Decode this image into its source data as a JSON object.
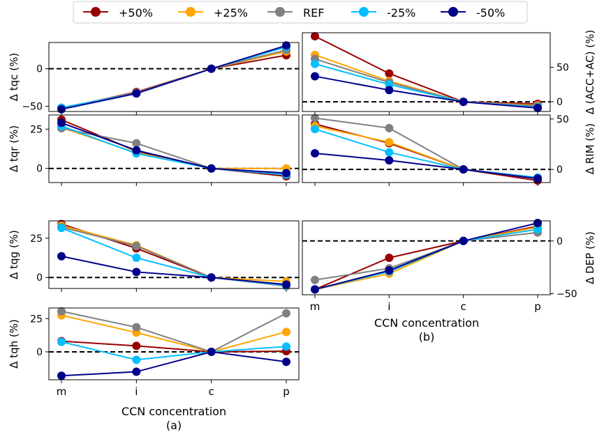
{
  "figure": {
    "legend": {
      "location": "top-center",
      "entries": [
        {
          "name": "+50%",
          "color": "#990000"
        },
        {
          "name": "+25%",
          "color": "#ffa500"
        },
        {
          "name": "REF",
          "color": "#808080"
        },
        {
          "name": "-25%",
          "color": "#00bfff"
        },
        {
          "name": "-50%",
          "color": "#00008b"
        }
      ]
    },
    "panel_labels": {
      "a": "(a)",
      "b": "(b)"
    },
    "x_label": "CCN concentration",
    "zero_line": "dashed black at y=0"
  },
  "chart_data": [
    {
      "id": "tqc",
      "type": "line",
      "panel": "a",
      "ylabel": "Δ tqc (%)",
      "yaxis_side": "left",
      "categories": [
        "m",
        "i",
        "c",
        "p"
      ],
      "ylim": [
        -57,
        35
      ],
      "yticks": [
        -50,
        0
      ],
      "ytick_labels": [
        "−50",
        "0"
      ],
      "series": [
        {
          "name": "+50%",
          "values": [
            -53,
            -31,
            0,
            18
          ]
        },
        {
          "name": "+25%",
          "values": [
            -53,
            -32,
            0,
            23
          ]
        },
        {
          "name": "REF",
          "values": [
            -52,
            -32,
            0,
            25
          ]
        },
        {
          "name": "-25%",
          "values": [
            -52,
            -33,
            0,
            29
          ]
        },
        {
          "name": "-50%",
          "values": [
            -54,
            -33,
            0,
            31
          ]
        }
      ]
    },
    {
      "id": "acc",
      "type": "line",
      "panel": "b",
      "ylabel": "Δ (ACC+AC) (%)",
      "yaxis_side": "right",
      "categories": [
        "m",
        "i",
        "c",
        "p"
      ],
      "ylim": [
        -14,
        100
      ],
      "yticks": [
        0,
        50
      ],
      "ytick_labels": [
        "0",
        "50"
      ],
      "series": [
        {
          "name": "+50%",
          "values": [
            95,
            41,
            0,
            -3
          ]
        },
        {
          "name": "+25%",
          "values": [
            68,
            30,
            0,
            -5
          ]
        },
        {
          "name": "REF",
          "values": [
            62,
            28,
            0,
            -6
          ]
        },
        {
          "name": "-25%",
          "values": [
            55,
            25,
            0,
            -8
          ]
        },
        {
          "name": "-50%",
          "values": [
            37,
            17,
            0,
            -9
          ]
        }
      ]
    },
    {
      "id": "tqr",
      "type": "line",
      "panel": "a",
      "ylabel": "Δ tqr (%)",
      "yaxis_side": "left",
      "categories": [
        "m",
        "i",
        "c",
        "p"
      ],
      "ylim": [
        -9,
        34
      ],
      "yticks": [
        0,
        25
      ],
      "ytick_labels": [
        "0",
        "25"
      ],
      "series": [
        {
          "name": "+50%",
          "values": [
            31,
            11,
            0,
            -5
          ]
        },
        {
          "name": "+25%",
          "values": [
            26,
            10,
            0,
            0
          ]
        },
        {
          "name": "REF",
          "values": [
            25.5,
            16,
            0,
            -3
          ]
        },
        {
          "name": "-25%",
          "values": [
            27,
            9.5,
            0,
            -4
          ]
        },
        {
          "name": "-50%",
          "values": [
            29,
            11.5,
            0,
            -3
          ]
        }
      ]
    },
    {
      "id": "rim",
      "type": "line",
      "panel": "b",
      "ylabel": "Δ RIM (%)",
      "yaxis_side": "right",
      "categories": [
        "m",
        "i",
        "c",
        "p"
      ],
      "ylim": [
        -13,
        54
      ],
      "yticks": [
        0,
        50
      ],
      "ytick_labels": [
        "0",
        "50"
      ],
      "series": [
        {
          "name": "+50%",
          "values": [
            45,
            26,
            0,
            -11
          ]
        },
        {
          "name": "+25%",
          "values": [
            43,
            27,
            0,
            -8
          ]
        },
        {
          "name": "REF",
          "values": [
            51,
            41,
            0,
            -9
          ]
        },
        {
          "name": "-25%",
          "values": [
            40,
            17,
            0,
            -8
          ]
        },
        {
          "name": "-50%",
          "values": [
            16,
            9,
            0,
            -9
          ]
        }
      ]
    },
    {
      "id": "tqg",
      "type": "line",
      "panel": "a",
      "ylabel": "Δ tqg (%)",
      "yaxis_side": "left",
      "categories": [
        "m",
        "i",
        "c",
        "p"
      ],
      "ylim": [
        -7,
        36
      ],
      "yticks": [
        0,
        25
      ],
      "ytick_labels": [
        "0",
        "25"
      ],
      "series": [
        {
          "name": "+50%",
          "values": [
            34,
            18.5,
            0,
            -4.5
          ]
        },
        {
          "name": "+25%",
          "values": [
            33,
            20.5,
            0,
            -2.5
          ]
        },
        {
          "name": "REF",
          "values": [
            32,
            20,
            0,
            -5.5
          ]
        },
        {
          "name": "-25%",
          "values": [
            31.5,
            12.5,
            0,
            -5
          ]
        },
        {
          "name": "-50%",
          "values": [
            13.5,
            3.5,
            0,
            -4.5
          ]
        }
      ]
    },
    {
      "id": "dep",
      "type": "line",
      "panel": "b",
      "ylabel": "Δ DEP (%)",
      "yaxis_side": "right",
      "categories": [
        "m",
        "i",
        "c",
        "p"
      ],
      "ylim": [
        -51,
        19
      ],
      "yticks": [
        -50,
        0
      ],
      "ytick_labels": [
        "−50",
        "0"
      ],
      "series": [
        {
          "name": "+50%",
          "values": [
            -46,
            -16,
            0,
            14
          ]
        },
        {
          "name": "+25%",
          "values": [
            -46,
            -31,
            0,
            13
          ]
        },
        {
          "name": "REF",
          "values": [
            -37,
            -26,
            0,
            8
          ]
        },
        {
          "name": "-25%",
          "values": [
            -46,
            -29,
            0,
            11
          ]
        },
        {
          "name": "-50%",
          "values": [
            -46,
            -28,
            0,
            17
          ]
        }
      ]
    },
    {
      "id": "tqh",
      "type": "line",
      "panel": "a",
      "ylabel": "Δ tqh (%)",
      "yaxis_side": "left",
      "categories": [
        "m",
        "i",
        "c",
        "p"
      ],
      "ylim": [
        -21,
        33
      ],
      "yticks": [
        0,
        25
      ],
      "ytick_labels": [
        "0",
        "25"
      ],
      "series": [
        {
          "name": "+50%",
          "values": [
            8,
            4.5,
            0,
            0.5
          ]
        },
        {
          "name": "+25%",
          "values": [
            27.5,
            14.5,
            0,
            15
          ]
        },
        {
          "name": "REF",
          "values": [
            30.5,
            18.5,
            0,
            29
          ]
        },
        {
          "name": "-25%",
          "values": [
            7.5,
            -6,
            0,
            4
          ]
        },
        {
          "name": "-50%",
          "values": [
            -18,
            -15,
            0,
            -7.5
          ]
        }
      ]
    }
  ]
}
